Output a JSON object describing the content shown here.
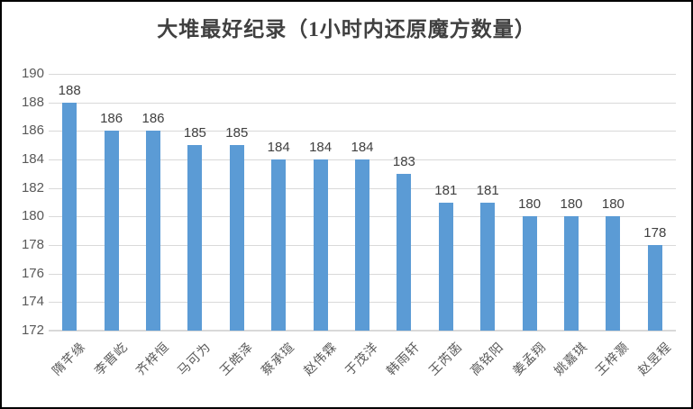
{
  "chart_data": {
    "type": "bar",
    "title": "大堆最好纪录（1小时内还原魔方数量）",
    "categories": [
      "隋芊缘",
      "李晋屹",
      "齐梓恒",
      "马可为",
      "王皓泽",
      "蔡承瑄",
      "赵伟霖",
      "于茂洋",
      "韩雨轩",
      "王芮菡",
      "高铭阳",
      "姜孟翔",
      "姚嘉琪",
      "王梓灏",
      "赵昱程"
    ],
    "values": [
      188,
      186,
      186,
      185,
      185,
      184,
      184,
      184,
      183,
      181,
      181,
      180,
      180,
      180,
      178
    ],
    "xlabel": "",
    "ylabel": "",
    "ylim": [
      172,
      190
    ],
    "yticks": [
      190,
      188,
      186,
      184,
      182,
      180,
      178,
      176,
      174,
      172
    ],
    "grid": true,
    "legend": false,
    "data_labels_shown": true,
    "colors": {
      "bar": "#5B9BD5",
      "gridline": "#D9D9D9",
      "title_text": "#404040",
      "axis_text": "#595959",
      "data_label_text": "#404040",
      "frame_border": "#000000",
      "background": "#FFFFFF"
    }
  }
}
